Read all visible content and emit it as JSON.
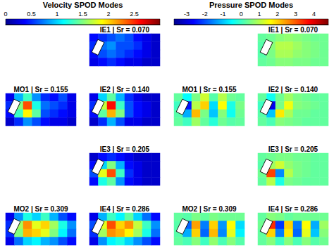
{
  "chart_data": {
    "type": "heatmap",
    "tick_labels": false,
    "groups": [
      {
        "title": "Velocity SPOD Modes",
        "colorbar": {
          "range": [
            0,
            3.0
          ],
          "ticks": [
            0,
            0.5,
            1,
            1.5,
            2,
            2.5
          ]
        },
        "rows": [
          [
            null,
            {
              "title": "IE1 | Sr = 0.070",
              "cells": [
                [
                  0.4,
                  0.5,
                  0.6,
                  0.7,
                  0.6,
                  0.4,
                  0.3,
                  0.2
                ],
                [
                  0.5,
                  0.7,
                  0.8,
                  0.6,
                  0.6,
                  0.5,
                  0.3,
                  0.2
                ],
                [
                  0.4,
                  0.6,
                  0.7,
                  0.6,
                  0.5,
                  0.4,
                  0.3,
                  0.2
                ],
                [
                  0.3,
                  0.4,
                  0.5,
                  0.4,
                  0.3,
                  0.3,
                  0.2,
                  0.2
                ]
              ]
            }
          ],
          [
            {
              "title": "MO1 | Sr = 0.155",
              "cells": [
                [
                  0.3,
                  0.9,
                  1.3,
                  0.8,
                  0.5,
                  0.4,
                  0.6,
                  0.3
                ],
                [
                  0.5,
                  1.5,
                  2.4,
                  1.2,
                  0.7,
                  0.6,
                  0.5,
                  0.3
                ],
                [
                  0.4,
                  1.3,
                  1.9,
                  1.4,
                  0.6,
                  0.5,
                  0.4,
                  0.3
                ],
                [
                  0.2,
                  0.5,
                  0.8,
                  0.6,
                  0.4,
                  0.3,
                  0.3,
                  0.2
                ]
              ]
            },
            {
              "title": "IE2 | Sr = 0.140",
              "cells": [
                [
                  0.3,
                  1.0,
                  1.4,
                  0.9,
                  0.5,
                  0.3,
                  0.2,
                  0.2
                ],
                [
                  0.5,
                  1.7,
                  2.6,
                  1.3,
                  0.6,
                  0.4,
                  0.3,
                  0.2
                ],
                [
                  0.4,
                  1.4,
                  2.1,
                  1.5,
                  0.6,
                  0.4,
                  0.3,
                  0.2
                ],
                [
                  0.2,
                  0.5,
                  0.9,
                  0.6,
                  0.3,
                  0.3,
                  0.2,
                  0.2
                ]
              ]
            }
          ],
          [
            null,
            {
              "title": "IE3 | Sr = 0.205",
              "cells": [
                [
                  0.2,
                  0.4,
                  0.5,
                  0.4,
                  0.3,
                  0.2,
                  0.2,
                  0.2
                ],
                [
                  0.4,
                  1.0,
                  1.5,
                  0.9,
                  0.4,
                  0.3,
                  0.2,
                  0.2
                ],
                [
                  0.6,
                  1.8,
                  2.4,
                  1.3,
                  0.5,
                  0.3,
                  0.2,
                  0.2
                ],
                [
                  0.4,
                  1.2,
                  1.4,
                  0.8,
                  0.4,
                  0.3,
                  0.2,
                  0.2
                ]
              ]
            }
          ],
          [
            {
              "title": "MO2 | Sr = 0.309",
              "cells": [
                [
                  0.3,
                  0.8,
                  1.2,
                  1.0,
                  1.3,
                  0.9,
                  0.6,
                  0.4
                ],
                [
                  0.5,
                  1.6,
                  2.2,
                  1.8,
                  2.0,
                  1.6,
                  1.2,
                  0.8
                ],
                [
                  0.5,
                  1.5,
                  2.1,
                  2.0,
                  1.8,
                  1.5,
                  1.1,
                  0.7
                ],
                [
                  0.3,
                  0.7,
                  1.0,
                  1.1,
                  0.9,
                  0.8,
                  0.6,
                  0.4
                ]
              ]
            },
            {
              "title": "IE4 | Sr = 0.286",
              "cells": [
                [
                  0.3,
                  0.9,
                  1.3,
                  1.1,
                  1.4,
                  1.0,
                  0.7,
                  0.4
                ],
                [
                  0.6,
                  1.8,
                  2.4,
                  2.0,
                  2.2,
                  1.7,
                  1.3,
                  0.8
                ],
                [
                  0.5,
                  1.6,
                  2.2,
                  2.1,
                  1.9,
                  1.6,
                  1.2,
                  0.7
                ],
                [
                  0.3,
                  0.8,
                  1.1,
                  1.2,
                  1.0,
                  0.8,
                  0.6,
                  0.4
                ]
              ]
            }
          ]
        ]
      },
      {
        "title": "Pressure SPOD Modes",
        "colorbar": {
          "range": [
            -3.7,
            4.8
          ],
          "ticks": [
            -3,
            -2,
            -1,
            0,
            1,
            2,
            3,
            4
          ]
        },
        "rows": [
          [
            null,
            {
              "title": "IE1 | Sr = 0.070",
              "cells": [
                [
                  0.3,
                  0.4,
                  0.6,
                  0.7,
                  0.6,
                  0.5,
                  0.4,
                  0.4
                ],
                [
                  0.2,
                  0.6,
                  1.0,
                  1.0,
                  0.8,
                  0.6,
                  0.5,
                  0.4
                ],
                [
                  0.2,
                  0.5,
                  0.9,
                  0.9,
                  0.7,
                  0.6,
                  0.5,
                  0.4
                ],
                [
                  0.3,
                  0.4,
                  0.6,
                  0.6,
                  0.5,
                  0.5,
                  0.4,
                  0.4
                ]
              ]
            }
          ],
          [
            {
              "title": "MO1 | Sr = 0.155",
              "cells": [
                [
                  0.3,
                  -0.5,
                  0.5,
                  1.2,
                  0.2,
                  1.0,
                  0.4,
                  0.3
                ],
                [
                  0.0,
                  -2.5,
                  1.0,
                  2.0,
                  -0.8,
                  1.6,
                  -0.3,
                  0.5
                ],
                [
                  0.2,
                  -1.2,
                  2.2,
                  0.5,
                  -1.0,
                  0.6,
                  -0.4,
                  0.4
                ],
                [
                  0.3,
                  0.0,
                  0.8,
                  0.3,
                  -0.2,
                  0.4,
                  0.2,
                  0.3
                ]
              ]
            },
            {
              "title": "IE2 | Sr = 0.140",
              "cells": [
                [
                  0.3,
                  -0.4,
                  0.4,
                  0.8,
                  0.5,
                  0.4,
                  0.3,
                  0.3
                ],
                [
                  0.0,
                  -2.8,
                  0.5,
                  1.5,
                  0.6,
                  0.5,
                  0.4,
                  0.3
                ],
                [
                  0.2,
                  -1.0,
                  1.8,
                  0.9,
                  0.4,
                  0.4,
                  0.3,
                  0.3
                ],
                [
                  0.3,
                  0.1,
                  0.6,
                  0.5,
                  0.4,
                  0.3,
                  0.3,
                  0.3
                ]
              ]
            }
          ],
          [
            null,
            {
              "title": "IE3 | Sr = 0.205",
              "cells": [
                [
                  0.3,
                  0.4,
                  0.5,
                  0.5,
                  0.4,
                  0.4,
                  0.3,
                  0.3
                ],
                [
                  0.2,
                  0.8,
                  1.2,
                  0.7,
                  0.5,
                  0.4,
                  0.3,
                  0.3
                ],
                [
                  0.4,
                  3.2,
                  -1.5,
                  1.0,
                  0.5,
                  0.4,
                  0.3,
                  0.3
                ],
                [
                  0.3,
                  1.0,
                  -0.3,
                  0.5,
                  0.4,
                  0.3,
                  0.3,
                  0.3
                ]
              ]
            }
          ],
          [
            {
              "title": "MO2 | Sr = 0.309",
              "cells": [
                [
                  0.3,
                  0.2,
                  0.5,
                  0.3,
                  0.5,
                  0.4,
                  0.4,
                  0.4
                ],
                [
                  0.2,
                  -1.8,
                  2.4,
                  -1.6,
                  2.0,
                  -1.4,
                  1.6,
                  -0.8
                ],
                [
                  0.2,
                  -1.2,
                  2.0,
                  -1.8,
                  2.2,
                  -1.5,
                  1.4,
                  -0.6
                ],
                [
                  0.3,
                  0.1,
                  0.6,
                  0.0,
                  0.7,
                  0.1,
                  0.6,
                  0.2
                ]
              ]
            },
            {
              "title": "IE4 | Sr = 0.286",
              "cells": [
                [
                  0.3,
                  0.6,
                  0.5,
                  0.3,
                  0.4,
                  0.4,
                  0.4,
                  0.4
                ],
                [
                  0.4,
                  3.4,
                  -2.2,
                  2.0,
                  -1.6,
                  1.6,
                  -1.2,
                  0.8
                ],
                [
                  0.3,
                  2.0,
                  -1.6,
                  1.8,
                  -1.8,
                  1.4,
                  -1.0,
                  0.6
                ],
                [
                  0.3,
                  0.6,
                  0.0,
                  0.6,
                  0.1,
                  0.6,
                  0.2,
                  0.4
                ]
              ]
            }
          ]
        ]
      }
    ]
  }
}
